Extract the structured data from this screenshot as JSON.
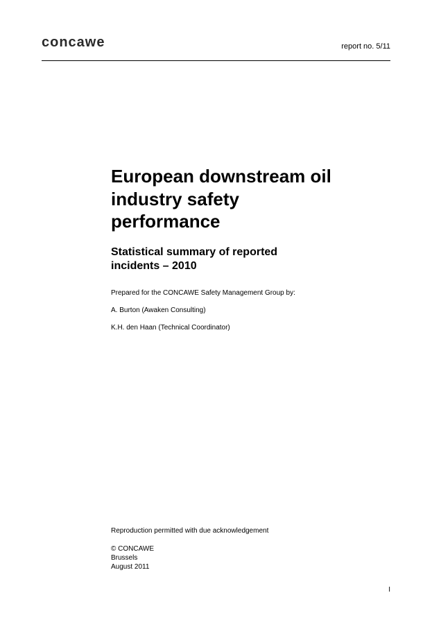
{
  "header": {
    "logo_text": "concawe",
    "report_number": "report no. 5/11"
  },
  "main": {
    "title": "European downstream oil industry safety performance",
    "subtitle": "Statistical summary of reported incidents – 2010",
    "prepared_by": "Prepared for the CONCAWE Safety Management Group by:",
    "authors": [
      "A. Burton (Awaken Consulting)",
      "K.H. den Haan (Technical Coordinator)"
    ]
  },
  "footer": {
    "reproduction_notice": "Reproduction permitted with due acknowledgement",
    "copyright_line1": "© CONCAWE",
    "copyright_line2": "Brussels",
    "copyright_line3": "August 2011",
    "page_number": "I"
  }
}
